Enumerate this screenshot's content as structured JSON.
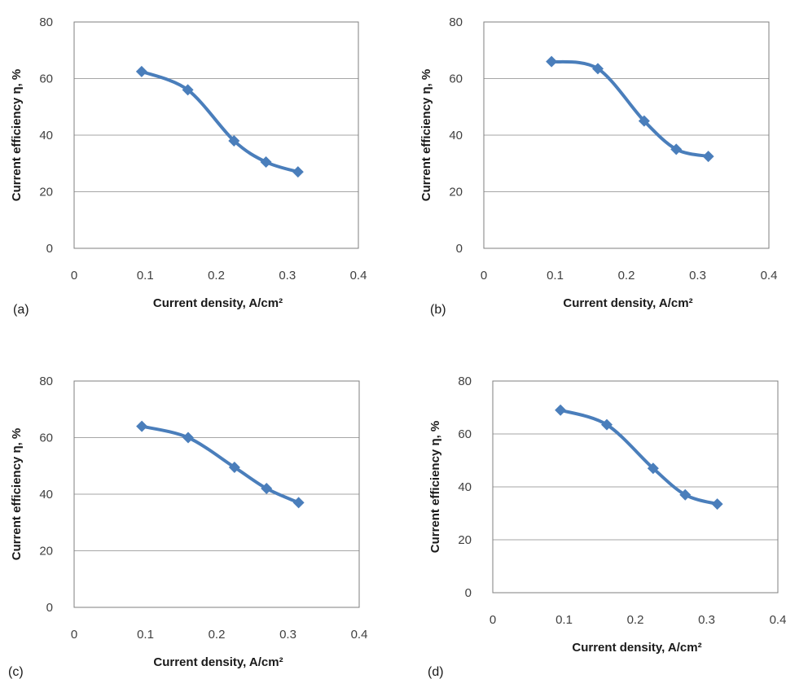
{
  "colors": {
    "series": "#4a7ebb",
    "grid": "#a6a6a6",
    "frame": "#7f7f7f"
  },
  "chart_data": [
    {
      "type": "line",
      "panel_label": "(a)",
      "xlabel": "Current density, A/cm²",
      "ylabel": "Current efficiency η, %",
      "xlim": [
        0,
        0.4
      ],
      "ylim": [
        0,
        80
      ],
      "xticks": [
        "0",
        "0.1",
        "0.2",
        "0.3",
        "0.4"
      ],
      "yticks": [
        "0",
        "20",
        "40",
        "60",
        "80"
      ],
      "grid": "horizontal",
      "marker": "diamond",
      "x": [
        0.095,
        0.16,
        0.225,
        0.27,
        0.315
      ],
      "y": [
        62.5,
        56,
        38,
        30.5,
        27
      ]
    },
    {
      "type": "line",
      "panel_label": "(b)",
      "xlabel": "Current density, A/cm²",
      "ylabel": "Current efficiency η, %",
      "xlim": [
        0,
        0.4
      ],
      "ylim": [
        0,
        80
      ],
      "xticks": [
        "0",
        "0.1",
        "0.2",
        "0.3",
        "0.4"
      ],
      "yticks": [
        "0",
        "20",
        "40",
        "60",
        "80"
      ],
      "grid": "horizontal",
      "marker": "diamond",
      "x": [
        0.095,
        0.16,
        0.225,
        0.27,
        0.315
      ],
      "y": [
        66,
        63.5,
        45,
        35,
        32.5
      ]
    },
    {
      "type": "line",
      "panel_label": "(c)",
      "xlabel": "Current density, A/cm²",
      "ylabel": "Current efficiency η, %",
      "xlim": [
        0,
        0.4
      ],
      "ylim": [
        0,
        80
      ],
      "xticks": [
        "0",
        "0.1",
        "0.2",
        "0.3",
        "0.4"
      ],
      "yticks": [
        "0",
        "20",
        "40",
        "60",
        "80"
      ],
      "grid": "horizontal",
      "marker": "diamond",
      "x": [
        0.095,
        0.16,
        0.225,
        0.27,
        0.315
      ],
      "y": [
        64,
        60,
        49.5,
        42,
        37
      ]
    },
    {
      "type": "line",
      "panel_label": "(d)",
      "xlabel": "Current density, A/cm²",
      "ylabel": "Current efficiency η, %",
      "xlim": [
        0,
        0.4
      ],
      "ylim": [
        0,
        80
      ],
      "xticks": [
        "0",
        "0.1",
        "0.2",
        "0.3",
        "0.4"
      ],
      "yticks": [
        "0",
        "20",
        "40",
        "60",
        "80"
      ],
      "grid": "horizontal",
      "marker": "diamond",
      "x": [
        0.095,
        0.16,
        0.225,
        0.27,
        0.315
      ],
      "y": [
        69,
        63.5,
        47,
        37,
        33.5
      ]
    }
  ]
}
